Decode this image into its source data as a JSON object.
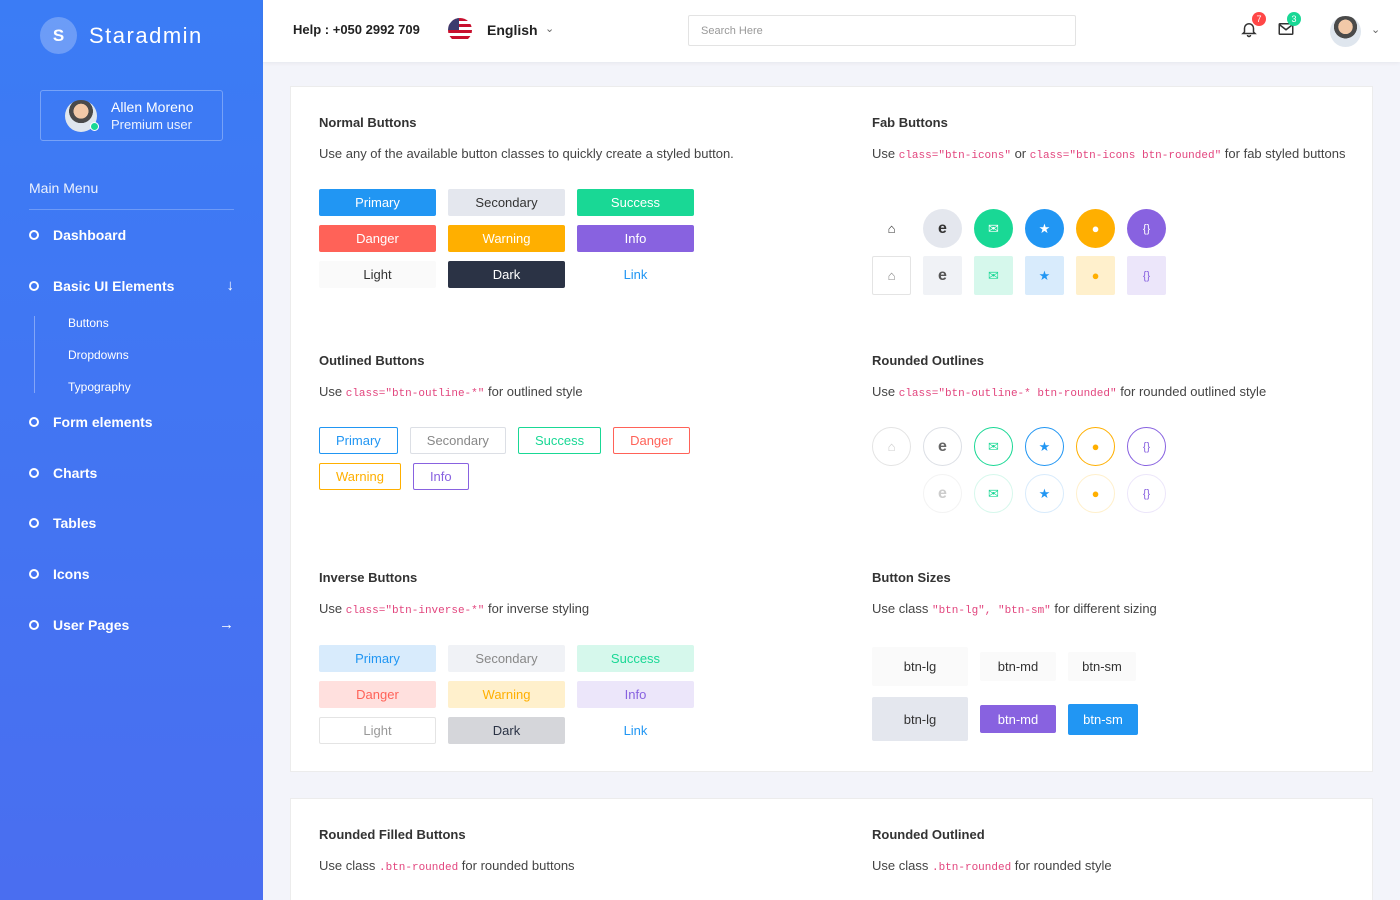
{
  "brand": {
    "initial": "S",
    "name": "Staradmin"
  },
  "profile": {
    "name": "Allen Moreno",
    "role": "Premium user"
  },
  "sidebar": {
    "menu_title": "Main Menu",
    "items": [
      {
        "label": "Dashboard"
      },
      {
        "label": "Basic UI Elements",
        "arrow": "↓"
      },
      {
        "label": "Form elements"
      },
      {
        "label": "Charts"
      },
      {
        "label": "Tables"
      },
      {
        "label": "Icons"
      },
      {
        "label": "User Pages",
        "arrow": "→"
      }
    ],
    "subitems": [
      {
        "label": "Buttons"
      },
      {
        "label": "Dropdowns"
      },
      {
        "label": "Typography"
      }
    ]
  },
  "topbar": {
    "help": "Help : +050 2992 709",
    "language": "English",
    "search_placeholder": "Search Here",
    "notifications_count": "7",
    "messages_count": "3"
  },
  "normal": {
    "title": "Normal Buttons",
    "desc": "Use any of the available button classes to quickly create a styled button.",
    "buttons": [
      "Primary",
      "Secondary",
      "Success",
      "Danger",
      "Warning",
      "Info",
      "Light",
      "Dark",
      "Link"
    ]
  },
  "fab": {
    "title": "Fab Buttons",
    "desc_pre": "Use ",
    "code1": "class=\"btn-icons\"",
    "desc_mid": " or ",
    "code2": "class=\"btn-icons btn-rounded\"",
    "desc_post": " for fab styled buttons"
  },
  "outlined": {
    "title": "Outlined Buttons",
    "desc_pre": "Use ",
    "code": "class=\"btn-outline-*\"",
    "desc_post": " for outlined style",
    "buttons": [
      "Primary",
      "Secondary",
      "Success",
      "Danger",
      "Warning",
      "Info"
    ]
  },
  "rounded_outlines": {
    "title": "Rounded Outlines",
    "desc_pre": "Use ",
    "code": "class=\"btn-outline-* btn-rounded\"",
    "desc_post": " for rounded outlined style"
  },
  "inverse": {
    "title": "Inverse Buttons",
    "desc_pre": "Use ",
    "code": "class=\"btn-inverse-*\"",
    "desc_post": " for inverse styling",
    "buttons": [
      "Primary",
      "Secondary",
      "Success",
      "Danger",
      "Warning",
      "Info",
      "Light",
      "Dark",
      "Link"
    ]
  },
  "sizes": {
    "title": "Button Sizes",
    "desc_pre": "Use class ",
    "code": "\"btn-lg\", \"btn-sm\"",
    "desc_post": " for different sizing",
    "row1": [
      "btn-lg",
      "btn-md",
      "btn-sm"
    ],
    "row2": [
      "btn-lg",
      "btn-md",
      "btn-sm"
    ]
  },
  "rounded_filled": {
    "title": "Rounded Filled Buttons",
    "desc_pre": "Use class ",
    "code": ".btn-rounded",
    "desc_post": " for rounded buttons"
  },
  "rounded_outlined": {
    "title": "Rounded Outlined",
    "desc_pre": "Use class ",
    "code": ".btn-rounded",
    "desc_post": " for rounded style"
  },
  "colors": {
    "primary": "#2196f3",
    "success": "#19d895",
    "danger": "#ff6258",
    "warning": "#ffaf00",
    "info": "#8862e0",
    "dark": "#2b3345"
  }
}
